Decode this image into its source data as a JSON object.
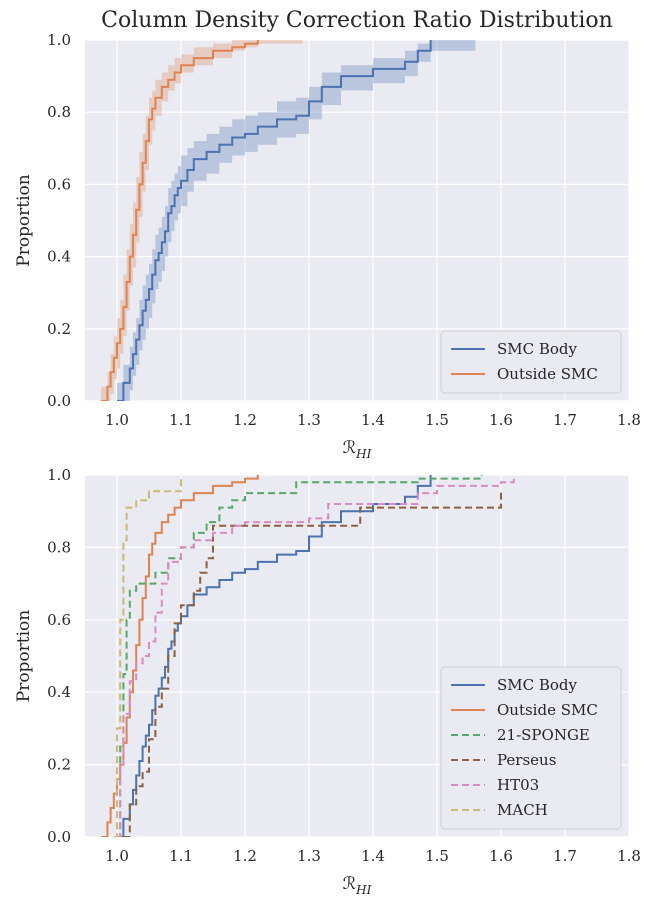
{
  "title": "Column Density Correction Ratio Distribution",
  "colors": {
    "smc_body": "#4c72b0",
    "outside_smc": "#dd8452",
    "sponge": "#55a868",
    "perseus": "#8c613c",
    "ht03": "#da8bc3",
    "mach": "#ccb974",
    "panel_bg": "#eaeaf2"
  },
  "chart_data": [
    {
      "type": "line",
      "subtype": "empirical CDF (step) with shaded uncertainty band",
      "xlabel": "R_HI",
      "ylabel": "Proportion",
      "xlim": [
        0.95,
        1.8
      ],
      "ylim": [
        0.0,
        1.0
      ],
      "xticks": [
        "1.0",
        "1.1",
        "1.2",
        "1.3",
        "1.4",
        "1.5",
        "1.6",
        "1.7",
        "1.8"
      ],
      "yticks": [
        "0.0",
        "0.2",
        "0.4",
        "0.6",
        "0.8",
        "1.0"
      ],
      "grid": true,
      "legend_position": "bottom-right",
      "series": [
        {
          "name": "SMC Body",
          "color_key": "smc_body",
          "dash": "solid",
          "band": true,
          "x": [
            1.0,
            1.01,
            1.02,
            1.025,
            1.03,
            1.035,
            1.04,
            1.045,
            1.05,
            1.055,
            1.06,
            1.065,
            1.07,
            1.075,
            1.08,
            1.085,
            1.09,
            1.095,
            1.1,
            1.11,
            1.12,
            1.14,
            1.16,
            1.18,
            1.2,
            1.22,
            1.25,
            1.28,
            1.3,
            1.32,
            1.35,
            1.4,
            1.45,
            1.47,
            1.49
          ],
          "y": [
            0.0,
            0.05,
            0.09,
            0.13,
            0.17,
            0.21,
            0.25,
            0.28,
            0.31,
            0.35,
            0.39,
            0.41,
            0.44,
            0.47,
            0.52,
            0.54,
            0.57,
            0.59,
            0.61,
            0.64,
            0.67,
            0.69,
            0.71,
            0.73,
            0.74,
            0.76,
            0.78,
            0.79,
            0.83,
            0.87,
            0.9,
            0.92,
            0.94,
            0.97,
            1.0
          ],
          "band_lower": [
            0.0,
            0.0,
            0.03,
            0.07,
            0.1,
            0.14,
            0.17,
            0.2,
            0.23,
            0.27,
            0.31,
            0.33,
            0.36,
            0.4,
            0.44,
            0.47,
            0.5,
            0.52,
            0.54,
            0.58,
            0.61,
            0.63,
            0.66,
            0.68,
            0.69,
            0.71,
            0.73,
            0.74,
            0.78,
            0.82,
            0.86,
            0.88,
            0.9,
            0.94,
            0.97
          ],
          "band_upper": [
            0.05,
            0.1,
            0.15,
            0.19,
            0.23,
            0.28,
            0.32,
            0.35,
            0.38,
            0.42,
            0.46,
            0.48,
            0.51,
            0.54,
            0.59,
            0.61,
            0.63,
            0.65,
            0.68,
            0.7,
            0.72,
            0.74,
            0.76,
            0.78,
            0.79,
            0.8,
            0.83,
            0.84,
            0.87,
            0.91,
            0.93,
            0.95,
            0.97,
            0.99,
            1.0
          ]
        },
        {
          "name": "Outside SMC",
          "color_key": "outside_smc",
          "dash": "solid",
          "band": true,
          "x": [
            0.975,
            0.985,
            0.99,
            0.995,
            1.0,
            1.005,
            1.01,
            1.015,
            1.02,
            1.025,
            1.03,
            1.035,
            1.04,
            1.045,
            1.05,
            1.055,
            1.06,
            1.07,
            1.08,
            1.09,
            1.1,
            1.12,
            1.15,
            1.18,
            1.2,
            1.22
          ],
          "y": [
            0.0,
            0.04,
            0.08,
            0.12,
            0.16,
            0.2,
            0.26,
            0.33,
            0.4,
            0.46,
            0.53,
            0.6,
            0.66,
            0.72,
            0.78,
            0.81,
            0.84,
            0.87,
            0.89,
            0.91,
            0.93,
            0.95,
            0.97,
            0.98,
            0.99,
            1.0
          ],
          "band_lower": [
            0.0,
            0.0,
            0.02,
            0.06,
            0.09,
            0.13,
            0.18,
            0.25,
            0.32,
            0.37,
            0.44,
            0.51,
            0.58,
            0.64,
            0.71,
            0.75,
            0.79,
            0.83,
            0.86,
            0.88,
            0.91,
            0.93,
            0.95,
            0.97,
            0.98,
            0.99
          ],
          "band_upper": [
            0.04,
            0.08,
            0.13,
            0.18,
            0.23,
            0.28,
            0.35,
            0.42,
            0.49,
            0.55,
            0.62,
            0.69,
            0.74,
            0.79,
            0.84,
            0.86,
            0.89,
            0.91,
            0.93,
            0.95,
            0.96,
            0.98,
            0.99,
            1.0,
            1.0,
            1.0
          ]
        }
      ]
    },
    {
      "type": "line",
      "subtype": "empirical CDF (step)",
      "xlabel": "R_HI",
      "ylabel": "Proportion",
      "xlim": [
        0.95,
        1.8
      ],
      "ylim": [
        0.0,
        1.0
      ],
      "xticks": [
        "1.0",
        "1.1",
        "1.2",
        "1.3",
        "1.4",
        "1.5",
        "1.6",
        "1.7",
        "1.8"
      ],
      "yticks": [
        "0.0",
        "0.2",
        "0.4",
        "0.6",
        "0.8",
        "1.0"
      ],
      "grid": true,
      "legend_position": "bottom-right",
      "series": [
        {
          "name": "SMC Body",
          "color_key": "smc_body",
          "dash": "solid",
          "x": [
            1.0,
            1.01,
            1.02,
            1.025,
            1.03,
            1.035,
            1.04,
            1.045,
            1.05,
            1.055,
            1.06,
            1.065,
            1.07,
            1.075,
            1.08,
            1.085,
            1.09,
            1.095,
            1.1,
            1.11,
            1.12,
            1.14,
            1.16,
            1.18,
            1.2,
            1.22,
            1.25,
            1.28,
            1.3,
            1.32,
            1.35,
            1.4,
            1.45,
            1.47,
            1.49
          ],
          "y": [
            0.0,
            0.05,
            0.09,
            0.13,
            0.17,
            0.21,
            0.25,
            0.28,
            0.31,
            0.35,
            0.39,
            0.41,
            0.44,
            0.47,
            0.52,
            0.54,
            0.57,
            0.59,
            0.61,
            0.64,
            0.67,
            0.69,
            0.71,
            0.73,
            0.74,
            0.76,
            0.78,
            0.79,
            0.83,
            0.87,
            0.9,
            0.92,
            0.94,
            0.97,
            1.0
          ]
        },
        {
          "name": "Outside SMC",
          "color_key": "outside_smc",
          "dash": "solid",
          "x": [
            0.975,
            0.985,
            0.99,
            0.995,
            1.0,
            1.005,
            1.01,
            1.015,
            1.02,
            1.025,
            1.03,
            1.035,
            1.04,
            1.045,
            1.05,
            1.055,
            1.06,
            1.07,
            1.08,
            1.09,
            1.1,
            1.12,
            1.15,
            1.18,
            1.2,
            1.22
          ],
          "y": [
            0.0,
            0.04,
            0.08,
            0.12,
            0.16,
            0.2,
            0.26,
            0.33,
            0.4,
            0.46,
            0.53,
            0.6,
            0.66,
            0.72,
            0.78,
            0.81,
            0.84,
            0.87,
            0.89,
            0.91,
            0.93,
            0.95,
            0.97,
            0.98,
            0.99,
            1.0
          ]
        },
        {
          "name": "21-SPONGE",
          "color_key": "sponge",
          "dash": "dashed",
          "x": [
            1.0,
            1.005,
            1.01,
            1.015,
            1.02,
            1.03,
            1.06,
            1.08,
            1.1,
            1.12,
            1.14,
            1.16,
            1.18,
            1.2,
            1.28,
            1.3,
            1.47,
            1.57
          ],
          "y": [
            0.0,
            0.25,
            0.45,
            0.6,
            0.68,
            0.7,
            0.73,
            0.77,
            0.8,
            0.84,
            0.87,
            0.91,
            0.93,
            0.95,
            0.98,
            0.98,
            0.99,
            1.0
          ]
        },
        {
          "name": "Perseus",
          "color_key": "perseus",
          "dash": "dashed",
          "x": [
            1.01,
            1.02,
            1.03,
            1.04,
            1.05,
            1.06,
            1.07,
            1.08,
            1.09,
            1.1,
            1.12,
            1.13,
            1.14,
            1.15,
            1.2,
            1.3,
            1.38,
            1.6
          ],
          "y": [
            0.0,
            0.09,
            0.14,
            0.18,
            0.27,
            0.36,
            0.41,
            0.5,
            0.59,
            0.64,
            0.68,
            0.73,
            0.77,
            0.86,
            0.86,
            0.86,
            0.91,
            0.955
          ]
        },
        {
          "name": "HT03",
          "color_key": "ht03",
          "dash": "dashed",
          "x": [
            1.0,
            1.005,
            1.01,
            1.02,
            1.03,
            1.04,
            1.05,
            1.06,
            1.07,
            1.08,
            1.1,
            1.12,
            1.15,
            1.18,
            1.2,
            1.3,
            1.33,
            1.47,
            1.5,
            1.6,
            1.62
          ],
          "y": [
            0.0,
            0.2,
            0.34,
            0.43,
            0.48,
            0.5,
            0.54,
            0.62,
            0.7,
            0.76,
            0.8,
            0.82,
            0.84,
            0.86,
            0.87,
            0.88,
            0.92,
            0.95,
            0.97,
            0.98,
            1.0
          ]
        },
        {
          "name": "MACH",
          "color_key": "mach",
          "dash": "dashed",
          "x": [
            0.995,
            1.0,
            1.005,
            1.01,
            1.015,
            1.03,
            1.05,
            1.1
          ],
          "y": [
            0.0,
            0.3,
            0.6,
            0.82,
            0.91,
            0.93,
            0.955,
            1.0
          ]
        }
      ]
    }
  ]
}
